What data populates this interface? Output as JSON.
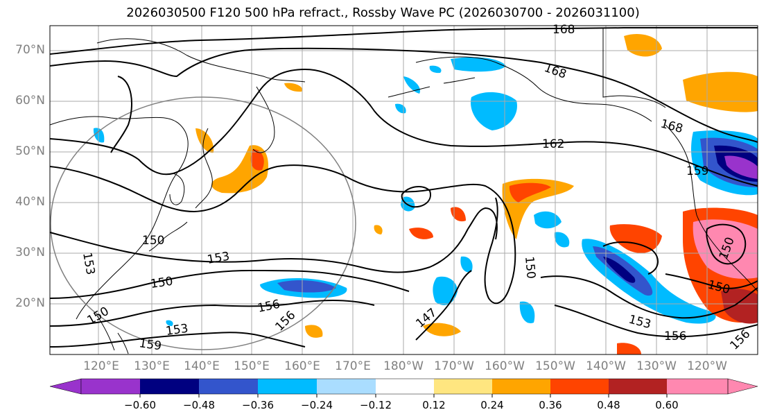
{
  "title": "2026030500 F120 500 hPa refract., Rossby Wave PC (2026030700 - 2026031100)",
  "lat_labels": [
    "70°N",
    "60°N",
    "50°N",
    "40°N",
    "30°N",
    "20°N"
  ],
  "lon_labels": [
    "120°E",
    "130°E",
    "140°E",
    "150°E",
    "160°E",
    "170°E",
    "180°W",
    "170°W",
    "160°W",
    "150°W",
    "140°W",
    "130°W",
    "120°W"
  ],
  "contour_labels": [
    "168",
    "168",
    "168",
    "162",
    "159",
    "153",
    "150",
    "153",
    "150",
    "156",
    "153",
    "150",
    "159",
    "156",
    "147",
    "150",
    "153",
    "156",
    "150",
    "156",
    "150"
  ],
  "colorbar": {
    "ticks": [
      "−0.60",
      "−0.48",
      "−0.36",
      "−0.24",
      "−0.12",
      "0.12",
      "0.24",
      "0.36",
      "0.48",
      "0.60"
    ],
    "colors": [
      "#9933cc",
      "#000080",
      "#3355cc",
      "#00bbff",
      "#aaddff",
      "#ffffff",
      "#ffe680",
      "#ffa500",
      "#ff4400",
      "#b22222",
      "#ff88b0"
    ]
  },
  "colors": {
    "coast": "#000000",
    "grid": "#aaaaaa",
    "contour": "#000000",
    "circle": "#808080"
  }
}
